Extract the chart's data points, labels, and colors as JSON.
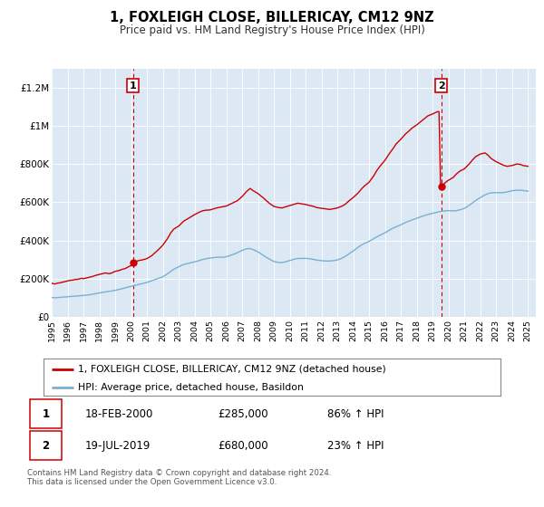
{
  "title": "1, FOXLEIGH CLOSE, BILLERICAY, CM12 9NZ",
  "subtitle": "Price paid vs. HM Land Registry's House Price Index (HPI)",
  "plot_bg_color": "#dce9f5",
  "red_line_color": "#cc0000",
  "blue_line_color": "#7aafd4",
  "ylim": [
    0,
    1300000
  ],
  "xlim_start": 1995.0,
  "xlim_end": 2025.5,
  "ytick_labels": [
    "£0",
    "£200K",
    "£400K",
    "£600K",
    "£800K",
    "£1M",
    "£1.2M"
  ],
  "ytick_values": [
    0,
    200000,
    400000,
    600000,
    800000,
    1000000,
    1200000
  ],
  "xtick_years": [
    1995,
    1996,
    1997,
    1998,
    1999,
    2000,
    2001,
    2002,
    2003,
    2004,
    2005,
    2006,
    2007,
    2008,
    2009,
    2010,
    2011,
    2012,
    2013,
    2014,
    2015,
    2016,
    2017,
    2018,
    2019,
    2020,
    2021,
    2022,
    2023,
    2024,
    2025
  ],
  "marker1_x": 2000.13,
  "marker1_y": 285000,
  "marker2_x": 2019.54,
  "marker2_y": 680000,
  "vline1_x": 2000.13,
  "vline2_x": 2019.54,
  "legend_label_red": "1, FOXLEIGH CLOSE, BILLERICAY, CM12 9NZ (detached house)",
  "legend_label_blue": "HPI: Average price, detached house, Basildon",
  "table_row1": [
    "1",
    "18-FEB-2000",
    "£285,000",
    "86% ↑ HPI"
  ],
  "table_row2": [
    "2",
    "19-JUL-2019",
    "£680,000",
    "23% ↑ HPI"
  ],
  "footer_text": "Contains HM Land Registry data © Crown copyright and database right 2024.\nThis data is licensed under the Open Government Licence v3.0.",
  "red_hpi_data": [
    [
      1995.0,
      176000
    ],
    [
      1995.1,
      174000
    ],
    [
      1995.2,
      172000
    ],
    [
      1995.3,
      175000
    ],
    [
      1995.4,
      177000
    ],
    [
      1995.5,
      178000
    ],
    [
      1995.6,
      180000
    ],
    [
      1995.7,
      182000
    ],
    [
      1995.8,
      184000
    ],
    [
      1995.9,
      186000
    ],
    [
      1996.0,
      188000
    ],
    [
      1996.1,
      190000
    ],
    [
      1996.2,
      192000
    ],
    [
      1996.3,
      192000
    ],
    [
      1996.4,
      194000
    ],
    [
      1996.5,
      196000
    ],
    [
      1996.6,
      196000
    ],
    [
      1996.7,
      198000
    ],
    [
      1996.8,
      200000
    ],
    [
      1996.9,
      202000
    ],
    [
      1997.0,
      200000
    ],
    [
      1997.1,
      202000
    ],
    [
      1997.2,
      204000
    ],
    [
      1997.3,
      206000
    ],
    [
      1997.4,
      208000
    ],
    [
      1997.5,
      210000
    ],
    [
      1997.6,
      212000
    ],
    [
      1997.7,
      215000
    ],
    [
      1997.8,
      218000
    ],
    [
      1997.9,
      220000
    ],
    [
      1998.0,
      222000
    ],
    [
      1998.1,
      224000
    ],
    [
      1998.2,
      226000
    ],
    [
      1998.3,
      228000
    ],
    [
      1998.4,
      230000
    ],
    [
      1998.5,
      228000
    ],
    [
      1998.6,
      226000
    ],
    [
      1998.7,
      228000
    ],
    [
      1998.8,
      230000
    ],
    [
      1998.9,
      235000
    ],
    [
      1999.0,
      238000
    ],
    [
      1999.1,
      240000
    ],
    [
      1999.2,
      242000
    ],
    [
      1999.3,
      244000
    ],
    [
      1999.4,
      248000
    ],
    [
      1999.5,
      250000
    ],
    [
      1999.6,
      252000
    ],
    [
      1999.7,
      256000
    ],
    [
      1999.8,
      260000
    ],
    [
      1999.9,
      265000
    ],
    [
      2000.0,
      268000
    ],
    [
      2000.13,
      285000
    ],
    [
      2000.3,
      290000
    ],
    [
      2000.5,
      295000
    ],
    [
      2000.7,
      298000
    ],
    [
      2001.0,
      305000
    ],
    [
      2001.3,
      320000
    ],
    [
      2001.5,
      335000
    ],
    [
      2001.7,
      350000
    ],
    [
      2002.0,
      375000
    ],
    [
      2002.3,
      410000
    ],
    [
      2002.5,
      440000
    ],
    [
      2002.7,
      460000
    ],
    [
      2003.0,
      475000
    ],
    [
      2003.3,
      500000
    ],
    [
      2003.5,
      510000
    ],
    [
      2003.7,
      520000
    ],
    [
      2004.0,
      535000
    ],
    [
      2004.3,
      548000
    ],
    [
      2004.5,
      555000
    ],
    [
      2004.7,
      558000
    ],
    [
      2005.0,
      560000
    ],
    [
      2005.3,
      568000
    ],
    [
      2005.5,
      572000
    ],
    [
      2005.7,
      575000
    ],
    [
      2006.0,
      580000
    ],
    [
      2006.3,
      592000
    ],
    [
      2006.5,
      600000
    ],
    [
      2006.7,
      608000
    ],
    [
      2007.0,
      630000
    ],
    [
      2007.3,
      658000
    ],
    [
      2007.5,
      672000
    ],
    [
      2007.7,
      660000
    ],
    [
      2008.0,
      645000
    ],
    [
      2008.3,
      625000
    ],
    [
      2008.5,
      610000
    ],
    [
      2008.7,
      595000
    ],
    [
      2009.0,
      578000
    ],
    [
      2009.3,
      572000
    ],
    [
      2009.5,
      570000
    ],
    [
      2009.7,
      575000
    ],
    [
      2010.0,
      582000
    ],
    [
      2010.3,
      590000
    ],
    [
      2010.5,
      595000
    ],
    [
      2010.7,
      592000
    ],
    [
      2011.0,
      588000
    ],
    [
      2011.3,
      582000
    ],
    [
      2011.5,
      578000
    ],
    [
      2011.7,
      572000
    ],
    [
      2012.0,
      568000
    ],
    [
      2012.3,
      565000
    ],
    [
      2012.5,
      562000
    ],
    [
      2012.7,
      565000
    ],
    [
      2013.0,
      570000
    ],
    [
      2013.3,
      580000
    ],
    [
      2013.5,
      590000
    ],
    [
      2013.7,
      605000
    ],
    [
      2014.0,
      625000
    ],
    [
      2014.3,
      648000
    ],
    [
      2014.5,
      668000
    ],
    [
      2014.7,
      685000
    ],
    [
      2015.0,
      705000
    ],
    [
      2015.3,
      740000
    ],
    [
      2015.5,
      768000
    ],
    [
      2015.7,
      790000
    ],
    [
      2016.0,
      820000
    ],
    [
      2016.3,
      858000
    ],
    [
      2016.5,
      880000
    ],
    [
      2016.7,
      905000
    ],
    [
      2017.0,
      930000
    ],
    [
      2017.3,
      958000
    ],
    [
      2017.5,
      972000
    ],
    [
      2017.7,
      988000
    ],
    [
      2018.0,
      1005000
    ],
    [
      2018.3,
      1025000
    ],
    [
      2018.5,
      1038000
    ],
    [
      2018.7,
      1052000
    ],
    [
      2019.0,
      1062000
    ],
    [
      2019.2,
      1070000
    ],
    [
      2019.35,
      1075000
    ],
    [
      2019.4,
      1073000
    ],
    [
      2019.5,
      680000
    ],
    [
      2019.54,
      680000
    ],
    [
      2019.7,
      695000
    ],
    [
      2019.9,
      710000
    ],
    [
      2020.0,
      715000
    ],
    [
      2020.3,
      730000
    ],
    [
      2020.5,
      748000
    ],
    [
      2020.7,
      762000
    ],
    [
      2021.0,
      775000
    ],
    [
      2021.3,
      800000
    ],
    [
      2021.5,
      820000
    ],
    [
      2021.7,
      838000
    ],
    [
      2022.0,
      852000
    ],
    [
      2022.3,
      858000
    ],
    [
      2022.5,
      845000
    ],
    [
      2022.7,
      828000
    ],
    [
      2023.0,
      812000
    ],
    [
      2023.3,
      800000
    ],
    [
      2023.5,
      792000
    ],
    [
      2023.7,
      788000
    ],
    [
      2024.0,
      792000
    ],
    [
      2024.3,
      800000
    ],
    [
      2024.5,
      798000
    ],
    [
      2024.7,
      792000
    ],
    [
      2025.0,
      788000
    ]
  ],
  "blue_hpi_data": [
    [
      1995.0,
      102000
    ],
    [
      1995.2,
      100000
    ],
    [
      1995.4,
      101000
    ],
    [
      1995.6,
      103000
    ],
    [
      1995.8,
      104000
    ],
    [
      1996.0,
      105000
    ],
    [
      1996.2,
      107000
    ],
    [
      1996.4,
      108000
    ],
    [
      1996.6,
      109000
    ],
    [
      1996.8,
      111000
    ],
    [
      1997.0,
      112000
    ],
    [
      1997.2,
      114000
    ],
    [
      1997.4,
      116000
    ],
    [
      1997.6,
      119000
    ],
    [
      1997.8,
      122000
    ],
    [
      1998.0,
      125000
    ],
    [
      1998.2,
      128000
    ],
    [
      1998.4,
      131000
    ],
    [
      1998.6,
      133000
    ],
    [
      1998.8,
      136000
    ],
    [
      1999.0,
      139000
    ],
    [
      1999.2,
      143000
    ],
    [
      1999.4,
      147000
    ],
    [
      1999.6,
      151000
    ],
    [
      1999.8,
      156000
    ],
    [
      2000.0,
      160000
    ],
    [
      2000.2,
      164000
    ],
    [
      2000.4,
      168000
    ],
    [
      2000.6,
      172000
    ],
    [
      2000.8,
      176000
    ],
    [
      2001.0,
      180000
    ],
    [
      2001.2,
      186000
    ],
    [
      2001.4,
      192000
    ],
    [
      2001.6,
      198000
    ],
    [
      2001.8,
      204000
    ],
    [
      2002.0,
      210000
    ],
    [
      2002.2,
      220000
    ],
    [
      2002.4,
      232000
    ],
    [
      2002.6,
      244000
    ],
    [
      2002.8,
      254000
    ],
    [
      2003.0,
      262000
    ],
    [
      2003.2,
      270000
    ],
    [
      2003.4,
      276000
    ],
    [
      2003.6,
      280000
    ],
    [
      2003.8,
      284000
    ],
    [
      2004.0,
      288000
    ],
    [
      2004.2,
      292000
    ],
    [
      2004.4,
      298000
    ],
    [
      2004.6,
      302000
    ],
    [
      2004.8,
      306000
    ],
    [
      2005.0,
      308000
    ],
    [
      2005.2,
      310000
    ],
    [
      2005.4,
      312000
    ],
    [
      2005.6,
      312000
    ],
    [
      2005.8,
      312000
    ],
    [
      2006.0,
      315000
    ],
    [
      2006.2,
      320000
    ],
    [
      2006.4,
      326000
    ],
    [
      2006.6,
      332000
    ],
    [
      2006.8,
      340000
    ],
    [
      2007.0,
      348000
    ],
    [
      2007.2,
      354000
    ],
    [
      2007.4,
      358000
    ],
    [
      2007.6,
      355000
    ],
    [
      2007.8,
      348000
    ],
    [
      2008.0,
      340000
    ],
    [
      2008.2,
      330000
    ],
    [
      2008.4,
      318000
    ],
    [
      2008.6,
      308000
    ],
    [
      2008.8,
      298000
    ],
    [
      2009.0,
      290000
    ],
    [
      2009.2,
      286000
    ],
    [
      2009.4,
      284000
    ],
    [
      2009.6,
      286000
    ],
    [
      2009.8,
      290000
    ],
    [
      2010.0,
      295000
    ],
    [
      2010.2,
      300000
    ],
    [
      2010.4,
      304000
    ],
    [
      2010.6,
      306000
    ],
    [
      2010.8,
      306000
    ],
    [
      2011.0,
      306000
    ],
    [
      2011.2,
      305000
    ],
    [
      2011.4,
      302000
    ],
    [
      2011.6,
      299000
    ],
    [
      2011.8,
      296000
    ],
    [
      2012.0,
      294000
    ],
    [
      2012.2,
      293000
    ],
    [
      2012.4,
      292000
    ],
    [
      2012.6,
      293000
    ],
    [
      2012.8,
      295000
    ],
    [
      2013.0,
      298000
    ],
    [
      2013.2,
      304000
    ],
    [
      2013.4,
      312000
    ],
    [
      2013.6,
      322000
    ],
    [
      2013.8,
      334000
    ],
    [
      2014.0,
      345000
    ],
    [
      2014.2,
      358000
    ],
    [
      2014.4,
      370000
    ],
    [
      2014.6,
      380000
    ],
    [
      2014.8,
      388000
    ],
    [
      2015.0,
      395000
    ],
    [
      2015.2,
      405000
    ],
    [
      2015.4,
      415000
    ],
    [
      2015.6,
      424000
    ],
    [
      2015.8,
      432000
    ],
    [
      2016.0,
      440000
    ],
    [
      2016.2,
      450000
    ],
    [
      2016.4,
      460000
    ],
    [
      2016.6,
      468000
    ],
    [
      2016.8,
      475000
    ],
    [
      2017.0,
      482000
    ],
    [
      2017.2,
      490000
    ],
    [
      2017.4,
      498000
    ],
    [
      2017.6,
      504000
    ],
    [
      2017.8,
      510000
    ],
    [
      2018.0,
      516000
    ],
    [
      2018.2,
      522000
    ],
    [
      2018.4,
      528000
    ],
    [
      2018.6,
      533000
    ],
    [
      2018.8,
      538000
    ],
    [
      2019.0,
      542000
    ],
    [
      2019.2,
      546000
    ],
    [
      2019.4,
      550000
    ],
    [
      2019.6,
      553000
    ],
    [
      2019.8,
      555000
    ],
    [
      2020.0,
      556000
    ],
    [
      2020.2,
      555000
    ],
    [
      2020.4,
      555000
    ],
    [
      2020.6,
      558000
    ],
    [
      2020.8,
      562000
    ],
    [
      2021.0,
      568000
    ],
    [
      2021.2,
      578000
    ],
    [
      2021.4,
      590000
    ],
    [
      2021.6,
      602000
    ],
    [
      2021.8,
      614000
    ],
    [
      2022.0,
      624000
    ],
    [
      2022.2,
      634000
    ],
    [
      2022.4,
      642000
    ],
    [
      2022.6,
      648000
    ],
    [
      2022.8,
      650000
    ],
    [
      2023.0,
      650000
    ],
    [
      2023.2,
      650000
    ],
    [
      2023.4,
      650000
    ],
    [
      2023.6,
      652000
    ],
    [
      2023.8,
      656000
    ],
    [
      2024.0,
      660000
    ],
    [
      2024.2,
      662000
    ],
    [
      2024.4,
      663000
    ],
    [
      2024.6,
      662000
    ],
    [
      2024.8,
      660000
    ],
    [
      2025.0,
      658000
    ]
  ]
}
